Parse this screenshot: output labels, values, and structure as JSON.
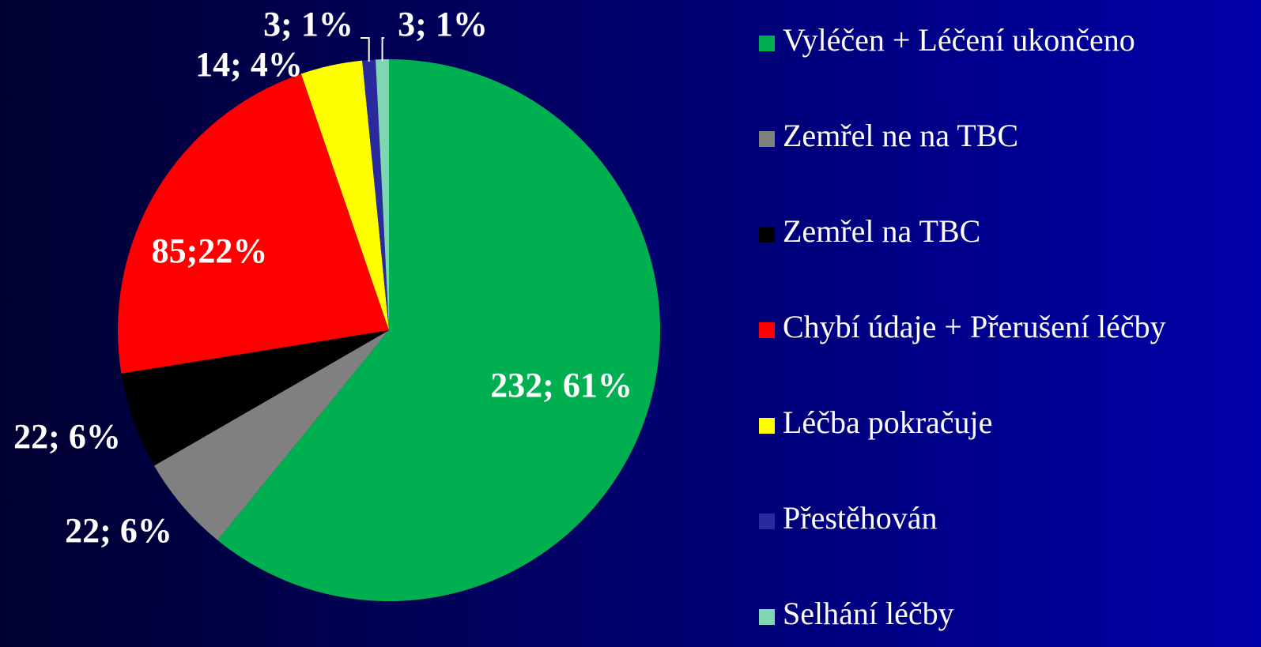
{
  "chart_data": {
    "type": "pie",
    "categories": [
      "Vyléčen + Léčení ukončeno",
      "Zemřel ne na TBC",
      "Zemřel na TBC",
      "Chybí údaje + Přerušení léčby",
      "Léčba pokračuje",
      "Přestěhován",
      "Selhání léčby"
    ],
    "values": [
      232,
      22,
      22,
      85,
      14,
      3,
      3
    ],
    "value_labels": [
      "232; 61%",
      "22; 6%",
      "22; 6%",
      "85;22%",
      "14; 4%",
      "3; 1%",
      "3; 1%"
    ],
    "colors": [
      "#00b050",
      "#808080",
      "#000000",
      "#ff0000",
      "#ffff00",
      "#2a2a9e",
      "#7fd6b2"
    ],
    "legend": "right"
  }
}
